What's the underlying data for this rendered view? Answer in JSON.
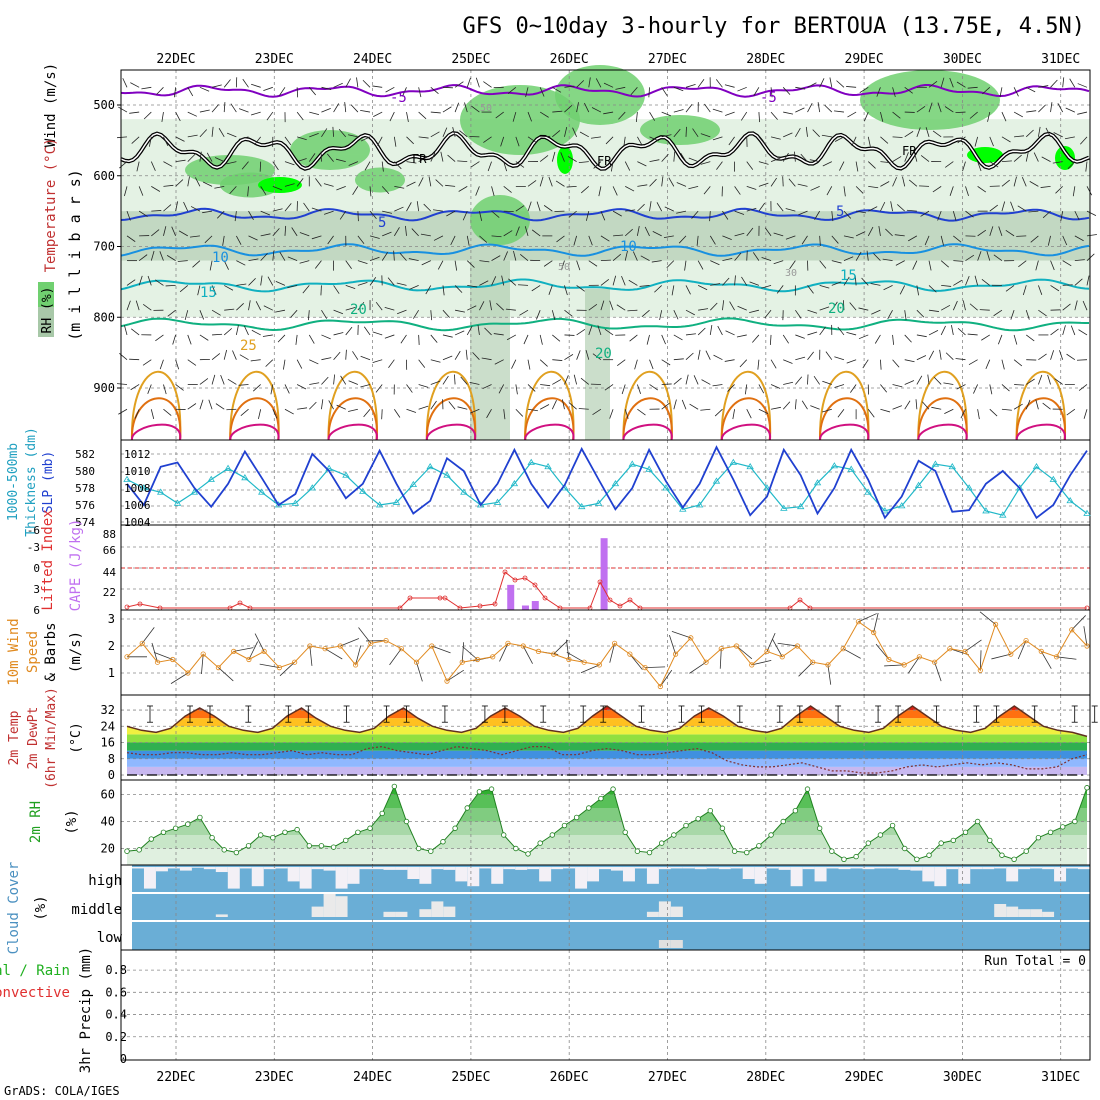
{
  "title": "GFS 0~10day 3-hourly for BERTOUA (13.75E, 4.5N)",
  "footer": "GrADS: COLA/IGES",
  "dates": [
    "22DEC",
    "23DEC",
    "24DEC",
    "25DEC",
    "26DEC",
    "27DEC",
    "28DEC",
    "29DEC",
    "30DEC",
    "31DEC"
  ],
  "colors": {
    "freezing": "#000000",
    "temp_neg5": "#8000c0",
    "temp_5": "#2040d0",
    "temp_10": "#1890e0",
    "temp_15": "#10b0c0",
    "temp_20": "#10b080",
    "temp_25": "#e0a020",
    "temp_30": "#e07010",
    "temp_35": "#d01080",
    "rh_light": "#d8ecd8",
    "rh_mid": "#a8c8a8",
    "rh_green": "#70d070",
    "rh_bright": "#00ff00",
    "slp": "#2040d0",
    "thickness": "#20b8c8",
    "lifted_index": "#e03030",
    "cape": "#c070f0",
    "wind10m": "#e08a20",
    "rh2m": "#20a020",
    "cloud": "#6aaed6",
    "cloud_gap": "#f3f0f6"
  },
  "chart_data": [
    {
      "panel": "upper-air",
      "type": "heatmap",
      "ylabel": "(m i l l i b a r s)",
      "left_labels": [
        "Wind (m/s)",
        "Temperature (°C)",
        "RH (%)"
      ],
      "y_ticks": [
        500,
        600,
        700,
        800,
        900
      ],
      "ylim": [
        1000,
        450
      ],
      "contour_labels": {
        "temperature": [
          "-5",
          "5",
          "10",
          "15",
          "20",
          "25"
        ],
        "rh": [
          "50",
          "30"
        ],
        "freezing": "FR"
      },
      "temperature_levels_mb": [
        {
          "value": -5,
          "p": 480
        },
        {
          "value": 5,
          "p": 655
        },
        {
          "value": 10,
          "p": 705
        },
        {
          "value": 15,
          "p": 755
        },
        {
          "value": 20,
          "p": 810
        }
      ],
      "freezing_level_mb": 565
    },
    {
      "panel": "pressure",
      "type": "line",
      "left_labels": [
        "1000-500mb Thickness (dm)",
        "SLP (mb)"
      ],
      "y_ticks_thickness": [
        574,
        576,
        578,
        580,
        582
      ],
      "y_ticks_slp": [
        1004,
        1006,
        1008,
        1010,
        1012
      ],
      "series": [
        {
          "name": "SLP (mb)",
          "values": [
            1008.5,
            1006,
            1010.5,
            1011,
            1008,
            1005.8,
            1008.5,
            1012.3,
            1009.2,
            1006,
            1007.3,
            1012,
            1010,
            1006.8,
            1008.5,
            1012.4,
            1008.5,
            1005,
            1006.5,
            1011.5,
            1010,
            1006,
            1008.5,
            1012.5,
            1008.5,
            1005.7,
            1008.4,
            1012.6,
            1009,
            1005.5,
            1008,
            1012.5,
            1008.8,
            1005.7,
            1008.5,
            1012.8,
            1009,
            1004.8,
            1007,
            1012.5,
            1009.5,
            1005,
            1008,
            1012.5,
            1009,
            1004.5,
            1007,
            1011.2,
            1010,
            1005.2,
            1005.4,
            1008.5,
            1010,
            1008,
            1004.5,
            1006,
            1009.5,
            1012.4
          ]
        },
        {
          "name": "1000-500mb Thickness (dm)",
          "values": [
            579,
            578,
            577.5,
            576.2,
            577.5,
            579,
            580.3,
            579.2,
            577.5,
            576,
            576.2,
            578,
            580.3,
            579.5,
            577.6,
            576,
            576.3,
            578.4,
            580.5,
            579.5,
            577.5,
            576,
            576.3,
            578.5,
            581,
            580.5,
            578,
            575.8,
            576.2,
            578.5,
            580.8,
            580.2,
            578,
            575.5,
            576,
            578.8,
            581,
            580.5,
            578,
            575.6,
            575.8,
            578.6,
            580.6,
            580.2,
            577.5,
            575.3,
            575.9,
            578.3,
            580.8,
            580.5,
            578,
            575.3,
            574.8,
            578,
            580.5,
            579,
            576.5,
            575
          ]
        }
      ]
    },
    {
      "panel": "instability",
      "type": "bar",
      "left_labels": [
        "Lifted Index",
        "CAPE (J/kg)"
      ],
      "y_ticks_li": [
        "-6",
        "-3",
        "0",
        "3",
        "6"
      ],
      "y_ticks_cape": [
        "88",
        "66",
        "44",
        "22"
      ],
      "cape_bars": [
        {
          "time_index": 25.4,
          "value": 28
        },
        {
          "time_index": 25.55,
          "value": 5
        },
        {
          "time_index": 25.65,
          "value": 10
        },
        {
          "time_index": 26.35,
          "value": 80
        }
      ],
      "lifted_index_labels": "-6 to 6"
    },
    {
      "panel": "wind10m",
      "type": "line",
      "left_labels": [
        "10m Wind Speed & Barbs",
        "(m/s)"
      ],
      "y_ticks": [
        1,
        2,
        3
      ],
      "series": [
        {
          "name": "10m Wind Speed",
          "values": [
            1.6,
            2.1,
            1.4,
            1.5,
            1.0,
            1.7,
            1.2,
            1.8,
            1.5,
            1.8,
            1.2,
            1.4,
            2.0,
            1.9,
            2.0,
            1.3,
            2.1,
            2.2,
            1.9,
            1.4,
            2.0,
            0.7,
            1.4,
            1.5,
            1.6,
            2.1,
            2.0,
            1.8,
            1.7,
            1.5,
            1.4,
            1.3,
            2.1,
            1.7,
            1.2,
            0.5,
            1.7,
            2.3,
            1.4,
            1.9,
            2.0,
            1.3,
            1.8,
            1.6,
            2.0,
            1.4,
            1.3,
            1.9,
            2.9,
            2.5,
            1.5,
            1.3,
            1.6,
            1.4,
            1.9,
            1.8,
            1.1,
            2.8,
            1.7,
            2.2,
            1.8,
            1.6,
            2.6,
            2.0
          ]
        }
      ]
    },
    {
      "panel": "temperature2m",
      "type": "area",
      "left_labels": [
        "2m Temp",
        "2m DewPt",
        "(6hr Min/Max)",
        "(°C)"
      ],
      "y_ticks": [
        0,
        8,
        16,
        24,
        32
      ],
      "series": [
        {
          "name": "2m Temp",
          "values": [
            24,
            22,
            21,
            23,
            29,
            33,
            29,
            24,
            22,
            21,
            23,
            29,
            33,
            28,
            24,
            22,
            21,
            23,
            29,
            33,
            28,
            24,
            22,
            21,
            23,
            29,
            33,
            29,
            24,
            22,
            21,
            23,
            29,
            34,
            29,
            24,
            22,
            21,
            23,
            29,
            33,
            29,
            24,
            22,
            21,
            23,
            29,
            34,
            29,
            24,
            22,
            21,
            23,
            29,
            34,
            29,
            24,
            22,
            21,
            23,
            29,
            34,
            29,
            24,
            22,
            21,
            19
          ]
        },
        {
          "name": "2m DewPt",
          "values": [
            11,
            10,
            10,
            11,
            11,
            10,
            10,
            11,
            10,
            10,
            11,
            12,
            10,
            11,
            10,
            10,
            13,
            14,
            12,
            11,
            10,
            12,
            14,
            13,
            12,
            10,
            12,
            14,
            14,
            10,
            10,
            12,
            13,
            12,
            10,
            10,
            11,
            12,
            13,
            11,
            7,
            5,
            4,
            4,
            5,
            6,
            4,
            2,
            2,
            1,
            1,
            2,
            4,
            5,
            4,
            5,
            6,
            5,
            6,
            5,
            3,
            3,
            4,
            8,
            10
          ]
        }
      ]
    },
    {
      "panel": "rh2m",
      "type": "area",
      "left_labels": [
        "2m RH",
        "(%)"
      ],
      "y_ticks": [
        20,
        40,
        60
      ],
      "series": [
        {
          "name": "2m RH",
          "values": [
            18,
            19,
            27,
            32,
            35,
            38,
            43,
            28,
            19,
            17,
            22,
            30,
            28,
            32,
            34,
            22,
            22,
            21,
            26,
            32,
            35,
            46,
            66,
            40,
            20,
            18,
            25,
            35,
            50,
            62,
            64,
            30,
            20,
            16,
            24,
            30,
            37,
            43,
            50,
            57,
            64,
            32,
            18,
            17,
            24,
            30,
            37,
            42,
            48,
            35,
            18,
            17,
            22,
            30,
            40,
            48,
            64,
            35,
            18,
            12,
            14,
            24,
            30,
            37,
            20,
            12,
            15,
            24,
            26,
            32,
            40,
            26,
            15,
            12,
            18,
            28,
            32,
            36,
            40,
            65
          ]
        }
      ]
    },
    {
      "panel": "cloud",
      "type": "bar",
      "left_labels": [
        "Cloud Cover",
        "(%)"
      ],
      "row_labels": [
        "high",
        "middle",
        "low"
      ],
      "high_clear": [
        0,
        1,
        0,
        0,
        0,
        0,
        0,
        0,
        1,
        0,
        1,
        0,
        0,
        1,
        1,
        0,
        0,
        1,
        1,
        0,
        0,
        0,
        0,
        1,
        1,
        0,
        0,
        1,
        1,
        0,
        1,
        0,
        0,
        0,
        1,
        0,
        0,
        1,
        1,
        0,
        0,
        1,
        0,
        1,
        0,
        0,
        0,
        0,
        0,
        0,
        0,
        1,
        1,
        0,
        0,
        1,
        0,
        1,
        0,
        0,
        0,
        0,
        0,
        0,
        0,
        0,
        1,
        1,
        0,
        1,
        0,
        0,
        0,
        1,
        0,
        0,
        0,
        1,
        0,
        0
      ],
      "high_fraction": [
        0.2,
        0.9,
        0.6,
        0.2,
        0.5,
        0.1,
        0.3,
        0.7,
        0.9,
        0.2,
        0.8,
        0.3,
        0.2,
        0.6,
        0.9,
        0.3,
        0.5,
        0.9,
        0.7,
        0.3,
        0.3,
        0.4,
        0.4,
        0.5,
        0.7,
        0.3,
        0.4,
        0.6,
        0.8,
        0.2,
        0.7,
        0.3,
        0.4,
        0.3,
        0.6,
        0.3,
        0.2,
        0.9,
        0.6,
        0.3,
        0.5,
        0.6,
        0.2,
        0.7,
        0.3,
        0.2,
        0.2,
        0.3,
        0.2,
        0.3,
        0.2,
        0.5,
        0.7,
        0.2,
        0.4,
        0.8,
        0.3,
        0.6,
        0.2,
        0.3,
        0.2,
        0.3,
        0.2,
        0.2,
        0.4,
        0.5,
        0.6,
        0.8,
        0.3,
        0.7,
        0.3,
        0.3,
        0.2,
        0.6,
        0.3,
        0.2,
        0.3,
        0.6,
        0.2,
        0.3
      ],
      "middle_fraction": [
        0,
        0,
        0,
        0,
        0,
        0,
        0,
        0.1,
        0,
        0,
        0,
        0,
        0,
        0,
        0,
        0.4,
        0.9,
        0.8,
        0,
        0,
        0,
        0.2,
        0.2,
        0,
        0.3,
        0.6,
        0.4,
        0,
        0,
        0,
        0,
        0,
        0,
        0,
        0,
        0,
        0,
        0,
        0,
        0,
        0,
        0,
        0,
        0.2,
        0.6,
        0.4,
        0,
        0,
        0,
        0,
        0,
        0,
        0,
        0,
        0,
        0,
        0,
        0,
        0,
        0,
        0,
        0,
        0,
        0,
        0,
        0,
        0,
        0,
        0,
        0,
        0,
        0,
        0.5,
        0.4,
        0.3,
        0.3,
        0.2,
        0,
        0,
        0
      ],
      "low_fraction": [
        0,
        0,
        0,
        0,
        0,
        0,
        0,
        0,
        0,
        0,
        0,
        0,
        0,
        0,
        0,
        0,
        0,
        0,
        0,
        0,
        0,
        0,
        0,
        0,
        0,
        0,
        0,
        0,
        0,
        0,
        0,
        0,
        0,
        0,
        0,
        0,
        0,
        0,
        0,
        0,
        0,
        0,
        0,
        0,
        0.8,
        0.8,
        0,
        0,
        0,
        0,
        0,
        0,
        0,
        0,
        0,
        0,
        0,
        0,
        0,
        0,
        0,
        0,
        0,
        0,
        0,
        0,
        0,
        0,
        0,
        0,
        0,
        0,
        0,
        0,
        0,
        0,
        0,
        0,
        0,
        0
      ]
    },
    {
      "panel": "precip",
      "type": "bar",
      "left_labels": [
        "3hr Precip (mm)",
        "Total / Rain",
        "Convective"
      ],
      "y_ticks": [
        "0",
        "0.2",
        "0.4",
        "0.6",
        "0.8"
      ],
      "ylim": [
        0,
        0.9
      ],
      "run_total_label": "Run Total = 0",
      "values": []
    }
  ]
}
